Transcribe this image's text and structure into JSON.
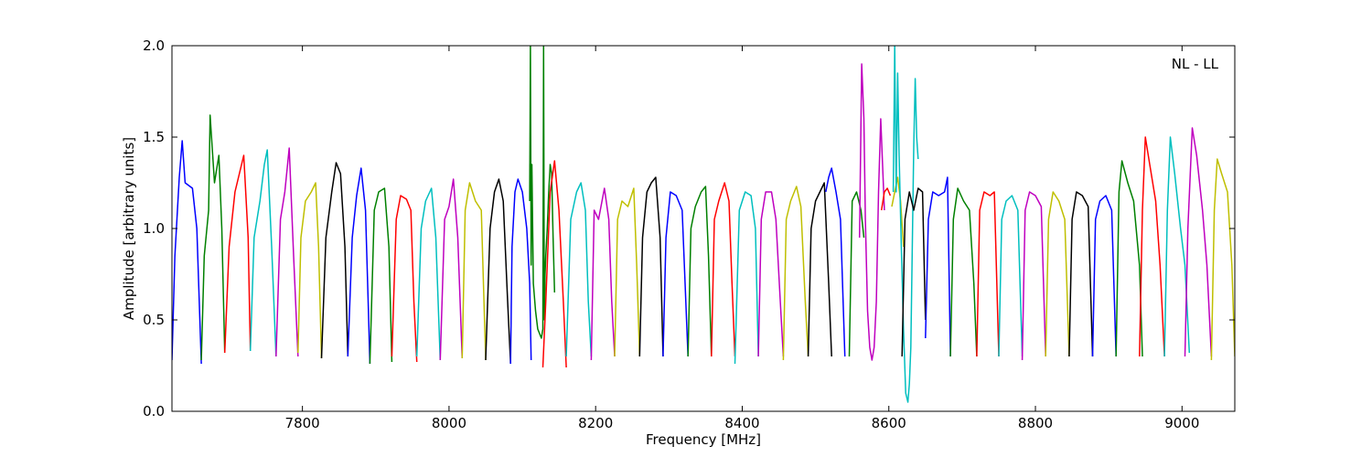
{
  "chart_data": {
    "type": "line",
    "title": "",
    "annotation": "NL - LL",
    "xlabel": "Frequency [MHz]",
    "ylabel": "Amplitude [arbitrary units]",
    "xlim": [
      7622,
      9072
    ],
    "ylim": [
      0.0,
      2.0
    ],
    "x_ticks": [
      7800,
      8000,
      8200,
      8400,
      8600,
      8800,
      9000
    ],
    "x_tick_labels": [
      "7800",
      "8000",
      "8200",
      "8400",
      "8600",
      "8800",
      "9000"
    ],
    "y_ticks": [
      0.0,
      0.5,
      1.0,
      1.5,
      2.0
    ],
    "y_tick_labels": [
      "0.0",
      "0.5",
      "1.0",
      "1.5",
      "2.0"
    ],
    "grid": false,
    "series": [
      {
        "color": "#0000ff",
        "x": [
          7622,
          7626,
          7632,
          7636,
          7640,
          7650,
          7656,
          7662
        ],
        "y": [
          0.28,
          0.85,
          1.28,
          1.48,
          1.25,
          1.22,
          1.0,
          0.26
        ]
      },
      {
        "color": "#008000",
        "x": [
          7662,
          7666,
          7672,
          7674,
          7680,
          7686,
          7690,
          7694
        ],
        "y": [
          0.28,
          0.85,
          1.1,
          1.62,
          1.25,
          1.4,
          1.0,
          0.32
        ]
      },
      {
        "color": "#ff0000",
        "x": [
          7694,
          7700,
          7708,
          7714,
          7720,
          7726,
          7729
        ],
        "y": [
          0.32,
          0.9,
          1.2,
          1.3,
          1.4,
          0.95,
          0.33
        ]
      },
      {
        "color": "#00bfbf",
        "x": [
          7729,
          7734,
          7742,
          7748,
          7752,
          7758,
          7764
        ],
        "y": [
          0.33,
          0.95,
          1.15,
          1.35,
          1.43,
          0.9,
          0.3
        ]
      },
      {
        "color": "#bf00bf",
        "x": [
          7764,
          7770,
          7776,
          7782,
          7788,
          7794
        ],
        "y": [
          0.3,
          1.05,
          1.2,
          1.44,
          0.85,
          0.3
        ]
      },
      {
        "color": "#bfbf00",
        "x": [
          7794,
          7798,
          7804,
          7812,
          7818,
          7822,
          7826
        ],
        "y": [
          0.32,
          0.95,
          1.15,
          1.2,
          1.25,
          0.9,
          0.29
        ]
      },
      {
        "color": "#000000",
        "x": [
          7826,
          7832,
          7840,
          7846,
          7852,
          7858,
          7862
        ],
        "y": [
          0.29,
          0.95,
          1.2,
          1.36,
          1.3,
          0.9,
          0.3
        ]
      },
      {
        "color": "#0000ff",
        "x": [
          7862,
          7868,
          7874,
          7880,
          7886,
          7890,
          7892
        ],
        "y": [
          0.3,
          0.95,
          1.18,
          1.33,
          1.1,
          0.55,
          0.26
        ]
      },
      {
        "color": "#008000",
        "x": [
          7892,
          7898,
          7904,
          7912,
          7918,
          7922
        ],
        "y": [
          0.26,
          1.1,
          1.2,
          1.22,
          0.9,
          0.27
        ]
      },
      {
        "color": "#ff0000",
        "x": [
          7922,
          7928,
          7934,
          7942,
          7948,
          7952,
          7956
        ],
        "y": [
          0.3,
          1.05,
          1.18,
          1.16,
          1.1,
          0.6,
          0.27
        ]
      },
      {
        "color": "#00bfbf",
        "x": [
          7956,
          7962,
          7968,
          7976,
          7982,
          7988
        ],
        "y": [
          0.3,
          1.0,
          1.15,
          1.22,
          0.95,
          0.28
        ]
      },
      {
        "color": "#bf00bf",
        "x": [
          7988,
          7994,
          8000,
          8006,
          8012,
          8018
        ],
        "y": [
          0.28,
          1.05,
          1.12,
          1.27,
          0.95,
          0.29
        ]
      },
      {
        "color": "#bfbf00",
        "x": [
          8018,
          8022,
          8028,
          8036,
          8044,
          8050
        ],
        "y": [
          0.29,
          1.1,
          1.25,
          1.15,
          1.1,
          0.28
        ]
      },
      {
        "color": "#000000",
        "x": [
          8050,
          8056,
          8062,
          8068,
          8074,
          8080,
          8084
        ],
        "y": [
          0.28,
          1.0,
          1.2,
          1.27,
          1.15,
          0.6,
          0.26
        ]
      },
      {
        "color": "#0000ff",
        "x": [
          8084,
          8086,
          8090,
          8094,
          8100,
          8106,
          8110,
          8112
        ],
        "y": [
          0.26,
          0.9,
          1.2,
          1.27,
          1.2,
          1.0,
          0.7,
          0.28
        ]
      },
      {
        "color": "#008000",
        "x": [
          8110,
          8111,
          8112,
          8113,
          8115,
          8118,
          8121,
          8124,
          8126,
          8128,
          8129,
          8130,
          8131,
          8132,
          8134,
          8136,
          8138,
          8140,
          8142,
          8144
        ],
        "y": [
          1.15,
          2.0,
          0.8,
          1.35,
          0.7,
          0.55,
          0.45,
          0.42,
          0.4,
          0.45,
          2.0,
          0.5,
          0.75,
          0.85,
          1.0,
          1.2,
          1.35,
          1.3,
          0.95,
          0.65
        ]
      },
      {
        "color": "#ff0000",
        "x": [
          8128,
          8132,
          8138,
          8144,
          8150,
          8156,
          8160
        ],
        "y": [
          0.24,
          0.6,
          1.2,
          1.37,
          1.1,
          0.6,
          0.24
        ]
      },
      {
        "color": "#00bfbf",
        "x": [
          8160,
          8166,
          8174,
          8180,
          8186,
          8190,
          8194
        ],
        "y": [
          0.3,
          1.05,
          1.2,
          1.25,
          1.1,
          0.6,
          0.3
        ]
      },
      {
        "color": "#bf00bf",
        "x": [
          8194,
          8198,
          8204,
          8212,
          8218,
          8222,
          8226
        ],
        "y": [
          0.28,
          1.1,
          1.05,
          1.22,
          1.05,
          0.6,
          0.3
        ]
      },
      {
        "color": "#bfbf00",
        "x": [
          8226,
          8230,
          8236,
          8244,
          8252,
          8256,
          8260
        ],
        "y": [
          0.3,
          1.05,
          1.15,
          1.12,
          1.22,
          0.8,
          0.3
        ]
      },
      {
        "color": "#000000",
        "x": [
          8260,
          8264,
          8270,
          8276,
          8282,
          8288,
          8292
        ],
        "y": [
          0.3,
          0.95,
          1.2,
          1.25,
          1.28,
          0.95,
          0.3
        ]
      },
      {
        "color": "#0000ff",
        "x": [
          8292,
          8296,
          8302,
          8310,
          8318,
          8322,
          8326
        ],
        "y": [
          0.3,
          0.95,
          1.2,
          1.18,
          1.1,
          0.7,
          0.3
        ]
      },
      {
        "color": "#008000",
        "x": [
          8326,
          8330,
          8336,
          8344,
          8350,
          8354,
          8358
        ],
        "y": [
          0.3,
          1.0,
          1.12,
          1.2,
          1.23,
          0.85,
          0.3
        ]
      },
      {
        "color": "#ff0000",
        "x": [
          8358,
          8362,
          8368,
          8376,
          8382,
          8386,
          8390
        ],
        "y": [
          0.3,
          1.05,
          1.15,
          1.25,
          1.15,
          0.7,
          0.3
        ]
      },
      {
        "color": "#00bfbf",
        "x": [
          8390,
          8396,
          8404,
          8412,
          8418,
          8422
        ],
        "y": [
          0.26,
          1.1,
          1.2,
          1.18,
          1.0,
          0.3
        ]
      },
      {
        "color": "#bf00bf",
        "x": [
          8422,
          8426,
          8432,
          8440,
          8446,
          8452,
          8456
        ],
        "y": [
          0.3,
          1.05,
          1.2,
          1.2,
          1.05,
          0.6,
          0.3
        ]
      },
      {
        "color": "#bfbf00",
        "x": [
          8456,
          8460,
          8466,
          8474,
          8480,
          8486,
          8490
        ],
        "y": [
          0.28,
          1.05,
          1.15,
          1.23,
          1.12,
          0.6,
          0.3
        ]
      },
      {
        "color": "#000000",
        "x": [
          8490,
          8494,
          8500,
          8506,
          8512,
          8518,
          8522
        ],
        "y": [
          0.3,
          1.0,
          1.15,
          1.2,
          1.25,
          0.7,
          0.3
        ]
      },
      {
        "color": "#0000ff",
        "x": [
          8514,
          8518,
          8522,
          8528,
          8534,
          8540
        ],
        "y": [
          1.2,
          1.28,
          1.33,
          1.2,
          1.05,
          0.3
        ]
      },
      {
        "color": "#008000",
        "x": [
          8546,
          8550,
          8556,
          8562,
          8566
        ],
        "y": [
          0.3,
          1.15,
          1.2,
          1.1,
          0.95
        ]
      },
      {
        "color": "#bf00bf",
        "x": [
          8560,
          8563,
          8566,
          8568,
          8571,
          8574,
          8577,
          8580,
          8583,
          8586,
          8589,
          8592,
          8594
        ],
        "y": [
          0.95,
          1.9,
          1.6,
          1.05,
          0.55,
          0.35,
          0.28,
          0.35,
          0.6,
          1.2,
          1.6,
          1.3,
          1.1
        ]
      },
      {
        "color": "#ff0000",
        "x": [
          8590,
          8594,
          8598,
          8602
        ],
        "y": [
          1.1,
          1.2,
          1.22,
          1.18
        ]
      },
      {
        "color": "#bfbf00",
        "x": [
          8604,
          8608,
          8612,
          8616,
          8620
        ],
        "y": [
          1.12,
          1.2,
          1.28,
          1.15,
          0.9
        ]
      },
      {
        "color": "#00bfbf",
        "x": [
          8606,
          8608,
          8610,
          8612,
          8614,
          8617,
          8620,
          8623,
          8626,
          8628,
          8630,
          8632,
          8634,
          8636,
          8638,
          8640
        ],
        "y": [
          1.2,
          2.0,
          1.2,
          1.85,
          1.4,
          0.9,
          0.45,
          0.1,
          0.05,
          0.15,
          0.35,
          0.9,
          1.45,
          1.82,
          1.5,
          1.38
        ]
      },
      {
        "color": "#000000",
        "x": [
          8618,
          8622,
          8628,
          8634,
          8640,
          8646,
          8650
        ],
        "y": [
          0.3,
          1.05,
          1.2,
          1.1,
          1.22,
          1.2,
          0.5
        ]
      },
      {
        "color": "#0000ff",
        "x": [
          8650,
          8654,
          8660,
          8668,
          8676,
          8680,
          8684
        ],
        "y": [
          0.4,
          1.05,
          1.2,
          1.18,
          1.2,
          1.28,
          0.3
        ]
      },
      {
        "color": "#008000",
        "x": [
          8684,
          8688,
          8694,
          8702,
          8710,
          8716,
          8720
        ],
        "y": [
          0.3,
          1.05,
          1.22,
          1.15,
          1.1,
          0.7,
          0.3
        ]
      },
      {
        "color": "#ff0000",
        "x": [
          8720,
          8724,
          8730,
          8738,
          8744,
          8750
        ],
        "y": [
          0.3,
          1.1,
          1.2,
          1.18,
          1.2,
          0.3
        ]
      },
      {
        "color": "#00bfbf",
        "x": [
          8750,
          8754,
          8760,
          8768,
          8776,
          8782
        ],
        "y": [
          0.3,
          1.05,
          1.15,
          1.18,
          1.1,
          0.3
        ]
      },
      {
        "color": "#bf00bf",
        "x": [
          8782,
          8786,
          8792,
          8800,
          8808,
          8814
        ],
        "y": [
          0.28,
          1.1,
          1.2,
          1.18,
          1.12,
          0.3
        ]
      },
      {
        "color": "#bfbf00",
        "x": [
          8814,
          8818,
          8824,
          8832,
          8840,
          8846
        ],
        "y": [
          0.3,
          1.05,
          1.2,
          1.15,
          1.05,
          0.3
        ]
      },
      {
        "color": "#000000",
        "x": [
          8846,
          8850,
          8856,
          8864,
          8872,
          8878
        ],
        "y": [
          0.3,
          1.05,
          1.2,
          1.18,
          1.12,
          0.3
        ]
      },
      {
        "color": "#0000ff",
        "x": [
          8878,
          8882,
          8888,
          8896,
          8904,
          8910
        ],
        "y": [
          0.3,
          1.05,
          1.15,
          1.18,
          1.1,
          0.3
        ]
      },
      {
        "color": "#008000",
        "x": [
          8910,
          8914,
          8918,
          8926,
          8934,
          8942,
          8946
        ],
        "y": [
          0.3,
          1.2,
          1.37,
          1.25,
          1.15,
          0.8,
          0.3
        ]
      },
      {
        "color": "#ff0000",
        "x": [
          8942,
          8946,
          8950,
          8956,
          8964,
          8970,
          8976
        ],
        "y": [
          0.3,
          1.1,
          1.5,
          1.35,
          1.15,
          0.8,
          0.3
        ]
      },
      {
        "color": "#00bfbf",
        "x": [
          8976,
          8980,
          8984,
          8990,
          8998,
          9004,
          9010
        ],
        "y": [
          0.3,
          1.1,
          1.5,
          1.3,
          1.0,
          0.8,
          0.32
        ]
      },
      {
        "color": "#bf00bf",
        "x": [
          9004,
          9008,
          9014,
          9020,
          9028,
          9034,
          9040
        ],
        "y": [
          0.3,
          1.0,
          1.55,
          1.4,
          1.1,
          0.8,
          0.3
        ]
      },
      {
        "color": "#bfbf00",
        "x": [
          9040,
          9044,
          9048,
          9054,
          9062,
          9068,
          9072
        ],
        "y": [
          0.28,
          1.1,
          1.38,
          1.3,
          1.2,
          0.8,
          0.3
        ]
      }
    ]
  }
}
